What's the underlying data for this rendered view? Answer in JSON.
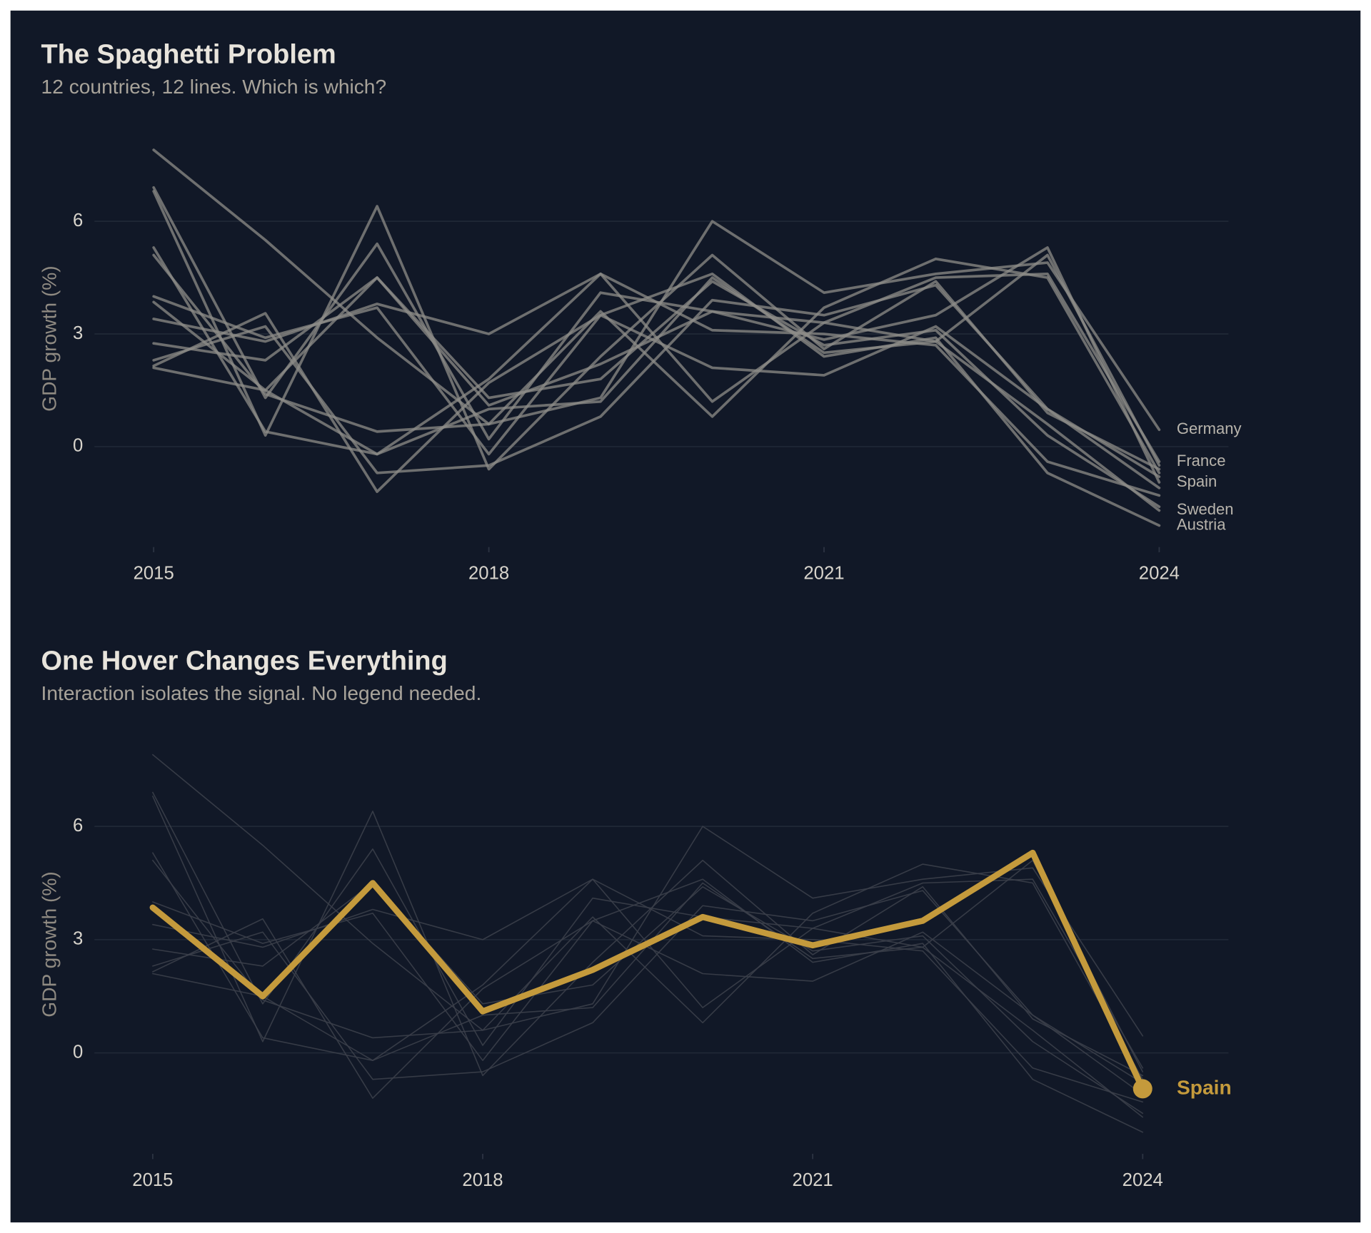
{
  "chart_data": [
    {
      "type": "line",
      "title": "The Spaghetti Problem",
      "subtitle": "12 countries, 12 lines. Which is which?",
      "y_label": "GDP growth (%)",
      "x": [
        2015,
        2016,
        2017,
        2018,
        2019,
        2020,
        2021,
        2022,
        2023,
        2024
      ],
      "xlim": [
        2014.47,
        2024.62
      ],
      "xticks": [
        2015,
        2018,
        2021,
        2024
      ],
      "ylim": [
        -2.65,
        8.4
      ],
      "yticks": [
        0,
        3,
        6
      ],
      "grid": true,
      "series": [
        {
          "name": "Germany",
          "color": "#8e8c88",
          "values": [
            7.9,
            5.5,
            2.9,
            0.6,
            1.3,
            6.0,
            4.1,
            4.6,
            4.9,
            0.45
          ]
        },
        {
          "name": "France",
          "color": "#8e8c88",
          "values": [
            6.9,
            1.3,
            5.4,
            0.2,
            4.1,
            3.6,
            3.3,
            4.5,
            4.6,
            -0.4
          ]
        },
        {
          "name": "Spain",
          "color": "#8e8c88",
          "values": [
            3.85,
            1.5,
            4.5,
            1.1,
            2.2,
            3.6,
            2.85,
            3.5,
            5.3,
            -0.95
          ]
        },
        {
          "name": "Sweden",
          "color": "#8e8c88",
          "values": [
            5.3,
            0.4,
            -0.2,
            1.8,
            4.6,
            1.2,
            3.3,
            2.8,
            0.6,
            -1.7
          ]
        },
        {
          "name": "Austria",
          "color": "#8e8c88",
          "values": [
            2.15,
            3.55,
            -1.2,
            1.7,
            3.5,
            4.6,
            2.4,
            2.9,
            -0.7,
            -2.1
          ]
        },
        {
          "color": "#8e8c88",
          "values": [
            6.8,
            0.3,
            6.4,
            -0.6,
            2.4,
            5.1,
            2.6,
            4.4,
            0.9,
            -0.6
          ]
        },
        {
          "color": "#8e8c88",
          "values": [
            5.1,
            1.4,
            0.4,
            0.6,
            3.6,
            0.8,
            3.7,
            5.0,
            4.5,
            -0.7
          ]
        },
        {
          "color": "#8e8c88",
          "values": [
            4.0,
            2.9,
            3.7,
            -0.2,
            3.5,
            2.1,
            1.9,
            3.2,
            1.0,
            -1.1
          ]
        },
        {
          "color": "#8e8c88",
          "values": [
            3.4,
            2.8,
            3.8,
            3.0,
            4.6,
            3.1,
            3.0,
            2.7,
            -0.4,
            -1.3
          ]
        },
        {
          "color": "#8e8c88",
          "values": [
            2.75,
            2.3,
            4.5,
            1.3,
            1.8,
            4.4,
            2.7,
            3.1,
            0.3,
            -1.6
          ]
        },
        {
          "color": "#8e8c88",
          "values": [
            2.3,
            3.2,
            -0.7,
            -0.5,
            0.8,
            3.9,
            3.5,
            4.3,
            1.0,
            -0.8
          ]
        },
        {
          "color": "#8e8c88",
          "values": [
            2.1,
            1.5,
            -0.2,
            1.0,
            1.2,
            4.5,
            2.5,
            2.8,
            5.1,
            -0.5
          ]
        }
      ]
    },
    {
      "type": "line",
      "title": "One Hover Changes Everything",
      "subtitle": "Interaction isolates the signal. No legend needed.",
      "y_label": "GDP growth (%)",
      "x": [
        2015,
        2016,
        2017,
        2018,
        2019,
        2020,
        2021,
        2022,
        2023,
        2024
      ],
      "xlim": [
        2014.47,
        2024.78
      ],
      "xticks": [
        2015,
        2018,
        2021,
        2024
      ],
      "ylim": [
        -2.65,
        8.4
      ],
      "yticks": [
        0,
        3,
        6
      ],
      "grid": true,
      "series": [
        {
          "color": "#3b3f4a",
          "values": [
            7.9,
            5.5,
            2.9,
            0.6,
            1.3,
            6.0,
            4.1,
            4.6,
            4.9,
            0.45
          ]
        },
        {
          "color": "#3b3f4a",
          "values": [
            6.9,
            1.3,
            5.4,
            0.2,
            4.1,
            3.6,
            3.3,
            4.5,
            4.6,
            -0.4
          ]
        },
        {
          "color": "#3b3f4a",
          "values": [
            5.3,
            0.4,
            -0.2,
            1.8,
            4.6,
            1.2,
            3.3,
            2.8,
            0.6,
            -1.7
          ]
        },
        {
          "color": "#3b3f4a",
          "values": [
            2.15,
            3.55,
            -1.2,
            1.7,
            3.5,
            4.6,
            2.4,
            2.9,
            -0.7,
            -2.1
          ]
        },
        {
          "color": "#3b3f4a",
          "values": [
            6.8,
            0.3,
            6.4,
            -0.6,
            2.4,
            5.1,
            2.6,
            4.4,
            0.9,
            -0.6
          ]
        },
        {
          "color": "#3b3f4a",
          "values": [
            5.1,
            1.4,
            0.4,
            0.6,
            3.6,
            0.8,
            3.7,
            5.0,
            4.5,
            -0.7
          ]
        },
        {
          "color": "#3b3f4a",
          "values": [
            4.0,
            2.9,
            3.7,
            -0.2,
            3.5,
            2.1,
            1.9,
            3.2,
            1.0,
            -1.1
          ]
        },
        {
          "color": "#3b3f4a",
          "values": [
            3.4,
            2.8,
            3.8,
            3.0,
            4.6,
            3.1,
            3.0,
            2.7,
            -0.4,
            -1.3
          ]
        },
        {
          "color": "#3b3f4a",
          "values": [
            2.75,
            2.3,
            4.5,
            1.3,
            1.8,
            4.4,
            2.7,
            3.1,
            0.3,
            -1.6
          ]
        },
        {
          "color": "#3b3f4a",
          "values": [
            2.3,
            3.2,
            -0.7,
            -0.5,
            0.8,
            3.9,
            3.5,
            4.3,
            1.0,
            -0.8
          ]
        },
        {
          "color": "#3b3f4a",
          "values": [
            2.1,
            1.5,
            -0.2,
            1.0,
            1.2,
            4.5,
            2.5,
            2.8,
            5.1,
            -0.5
          ]
        },
        {
          "name": "Spain",
          "color": "#c49a3c",
          "values": [
            3.85,
            1.5,
            4.5,
            1.1,
            2.2,
            3.6,
            2.85,
            3.5,
            5.3,
            -0.95
          ]
        }
      ]
    }
  ]
}
